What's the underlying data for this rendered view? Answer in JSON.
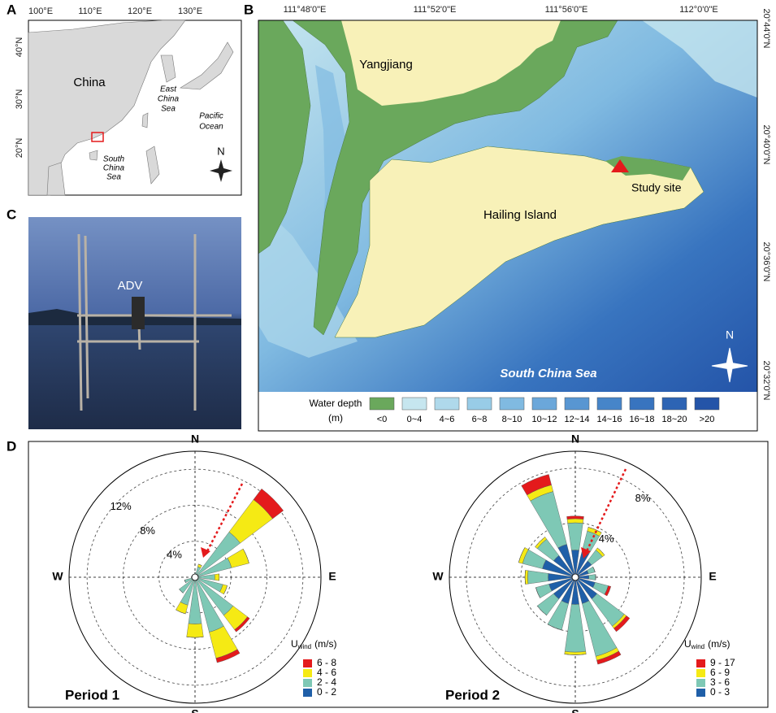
{
  "panel_labels": [
    "A",
    "B",
    "C",
    "D"
  ],
  "map_a": {
    "lon_labels": [
      "100°E",
      "110°E",
      "120°E",
      "130°E"
    ],
    "lat_labels": [
      "40°N",
      "30°N",
      "20°N"
    ],
    "china": "China",
    "east_china_sea": [
      "East",
      "China",
      "Sea"
    ],
    "pacific_ocean": [
      "Pacific",
      "Ocean"
    ],
    "south_china_sea": [
      "South",
      "China",
      "Sea"
    ],
    "north": "N"
  },
  "map_b": {
    "lon_labels": [
      "111°48'0\"E",
      "111°52'0\"E",
      "111°56'0\"E",
      "112°0'0\"E"
    ],
    "lat_labels": [
      "20°44'0\"N",
      "20°40'0\"N",
      "20°36'0\"N",
      "20°32'0\"N"
    ],
    "yangjiang": "Yangjiang",
    "hailing_island": "Hailing Island",
    "study_site": "Study site",
    "sea": "South China Sea",
    "north": "N",
    "legend_title": [
      "Water depth",
      "(m)"
    ],
    "legend": [
      {
        "label": "<0",
        "color": "#6aa85c"
      },
      {
        "label": "0~4",
        "color": "#c6e6ef"
      },
      {
        "label": "4~6",
        "color": "#afd9eb"
      },
      {
        "label": "6~8",
        "color": "#98cce7"
      },
      {
        "label": "8~10",
        "color": "#80bae1"
      },
      {
        "label": "10~12",
        "color": "#6ba7da"
      },
      {
        "label": "12~14",
        "color": "#5896d2"
      },
      {
        "label": "14~16",
        "color": "#4685c9"
      },
      {
        "label": "16~18",
        "color": "#3874bf"
      },
      {
        "label": "18~20",
        "color": "#2d64b4"
      },
      {
        "label": ">20",
        "color": "#2454a8"
      }
    ]
  },
  "photo_c": {
    "label": "ADV"
  },
  "chart_data": [
    {
      "type": "windrose",
      "title": "Period 1",
      "compass_labels": [
        "N",
        "E",
        "S",
        "W"
      ],
      "legend_title": [
        "U",
        "wind",
        "(m/s)"
      ],
      "x": [
        0,
        22.5,
        45,
        67.5,
        90,
        112.5,
        135,
        157.5,
        180,
        202.5,
        225,
        247.5,
        270,
        292.5,
        315,
        337.5
      ],
      "rlim": [
        0,
        14
      ],
      "rticks": [
        {
          "value": 4,
          "label": "4%"
        },
        {
          "value": 8,
          "label": "8%"
        },
        {
          "value": 12,
          "label": "12%"
        }
      ],
      "series": [
        {
          "name": "0 - 2",
          "color": "#1f5fa8",
          "values": [
            0.2,
            0.2,
            0.3,
            0.2,
            0.2,
            0.2,
            0.3,
            0.3,
            0.2,
            0.2,
            0.2,
            0.2,
            0.1,
            0.1,
            0.1,
            0.1
          ]
        },
        {
          "name": "2 - 4",
          "color": "#7ec8b5",
          "values": [
            0.3,
            1,
            6,
            4,
            2,
            3,
            5,
            6,
            5,
            3,
            2,
            1,
            0.3,
            0.2,
            0.2,
            0.2
          ]
        },
        {
          "name": "4 - 6",
          "color": "#f5ea14",
          "values": [
            0,
            0.3,
            4.5,
            2,
            0.5,
            0.5,
            2,
            3,
            1.5,
            1,
            0,
            0,
            0,
            0,
            0,
            0
          ]
        },
        {
          "name": "6 - 8",
          "color": "#e41a1c",
          "values": [
            0,
            0,
            1.5,
            0,
            0,
            0,
            0.3,
            0.5,
            0,
            0,
            0,
            0,
            0,
            0,
            0,
            0
          ]
        }
      ]
    },
    {
      "type": "windrose",
      "title": "Period 2",
      "compass_labels": [
        "N",
        "E",
        "S",
        "W"
      ],
      "legend_title": [
        "U",
        "wind",
        "(m/s)"
      ],
      "x": [
        0,
        22.5,
        45,
        67.5,
        90,
        112.5,
        135,
        157.5,
        180,
        202.5,
        225,
        247.5,
        270,
        292.5,
        315,
        337.5
      ],
      "rlim": [
        0,
        9.25
      ],
      "rticks": [
        {
          "value": 4,
          "label": "4%"
        },
        {
          "value": 8,
          "label": "8%"
        }
      ],
      "series": [
        {
          "name": "0 - 3",
          "color": "#1f5fa8",
          "values": [
            2,
            2,
            1.5,
            1,
            1,
            1.5,
            2,
            2,
            2,
            2,
            2,
            2,
            2,
            2.5,
            2,
            2.5
          ]
        },
        {
          "name": "3 - 6",
          "color": "#7ec8b5",
          "values": [
            2,
            1.5,
            1,
            0.5,
            0.5,
            1,
            2.5,
            4,
            3.5,
            2,
            1.5,
            1,
            1.5,
            1.5,
            1.5,
            4
          ]
        },
        {
          "name": "6 - 9",
          "color": "#f5ea14",
          "values": [
            0.3,
            0.3,
            0.2,
            0,
            0,
            0,
            0.2,
            0.3,
            0.2,
            0,
            0,
            0,
            0.2,
            0.3,
            0.2,
            0.5
          ]
        },
        {
          "name": "9 - 17",
          "color": "#e41a1c",
          "values": [
            0.2,
            0,
            0,
            0,
            0,
            0.2,
            0.3,
            0.3,
            0,
            0,
            0,
            0,
            0,
            0,
            0,
            0.8
          ]
        }
      ]
    }
  ]
}
